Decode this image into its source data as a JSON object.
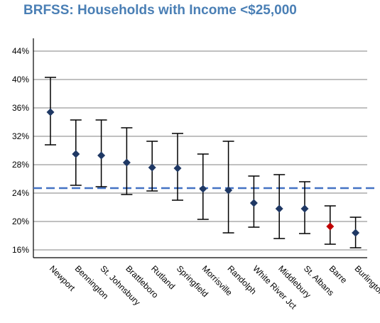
{
  "chart_data": {
    "type": "scatter",
    "title": "BRFSS: Households with Income <$25,000",
    "xlabel": "",
    "ylabel": "",
    "categories": [
      "Newport",
      "Bennington",
      "St. Johnsbury",
      "Brattleboro",
      "Rutland",
      "Springfield",
      "Morrisville",
      "Randolph",
      "White River Jct",
      "Middlebury",
      "St. Albans",
      "Barre",
      "Burlington"
    ],
    "values": [
      35.4,
      29.5,
      29.3,
      28.3,
      27.6,
      27.5,
      24.6,
      24.4,
      22.6,
      21.8,
      21.8,
      19.3,
      18.4
    ],
    "ci_low": [
      30.8,
      25.1,
      24.9,
      23.8,
      24.3,
      23.0,
      20.3,
      18.4,
      19.2,
      17.6,
      18.3,
      16.8,
      16.3
    ],
    "ci_high": [
      40.3,
      34.3,
      34.3,
      33.2,
      31.3,
      32.4,
      29.5,
      31.3,
      26.4,
      26.6,
      25.6,
      22.2,
      20.6
    ],
    "reference_line": 24.7,
    "ylim": [
      15,
      45
    ],
    "yticks": [
      16,
      20,
      24,
      28,
      32,
      36,
      40,
      44
    ],
    "ytick_labels": [
      "16%",
      "20%",
      "24%",
      "28%",
      "32%",
      "36%",
      "40%",
      "44%"
    ],
    "grid": true,
    "colors": {
      "marker": "#1f3864",
      "highlight": "#c00000",
      "highlight_index": 11,
      "reference": "#4472c4",
      "grid": "#808080",
      "title": "#4a7fb5"
    }
  }
}
